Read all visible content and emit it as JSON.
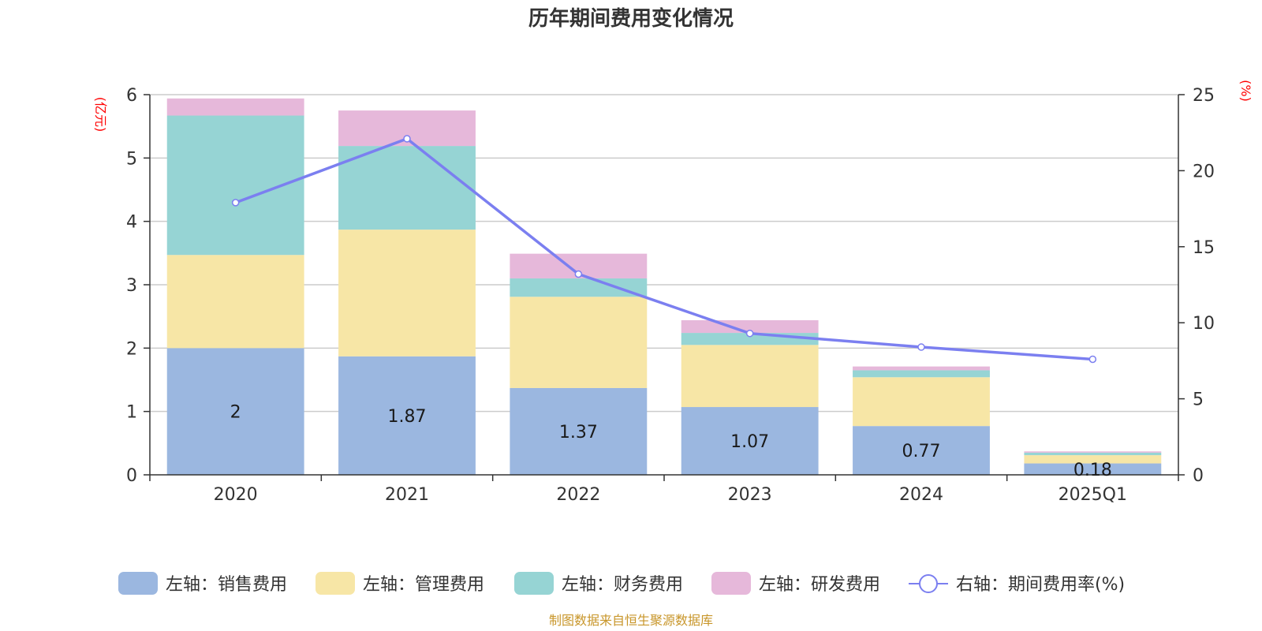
{
  "chart_data": {
    "type": "bar",
    "stacked": true,
    "title": "历年期间费用变化情况",
    "left_axis_unit": "(亿元)",
    "right_axis_unit": "(%)",
    "categories": [
      "2020",
      "2021",
      "2022",
      "2023",
      "2024",
      "2025Q1"
    ],
    "ylim_left": [
      0,
      6
    ],
    "yticks_left": [
      0,
      1,
      2,
      3,
      4,
      5,
      6
    ],
    "ylim_right": [
      0,
      25
    ],
    "yticks_right": [
      0,
      5,
      10,
      15,
      20,
      25
    ],
    "series": [
      {
        "name": "左轴：销售费用",
        "axis": "left",
        "type": "bar",
        "color": "#9bb7e0",
        "values": [
          2,
          1.87,
          1.37,
          1.07,
          0.77,
          0.18
        ],
        "labels": [
          "2",
          "1.87",
          "1.37",
          "1.07",
          "0.77",
          "0.18"
        ]
      },
      {
        "name": "左轴：管理费用",
        "axis": "left",
        "type": "bar",
        "color": "#f7e6a6",
        "values": [
          1.47,
          2.0,
          1.44,
          0.98,
          0.77,
          0.13
        ]
      },
      {
        "name": "左轴：财务费用",
        "axis": "left",
        "type": "bar",
        "color": "#96d4d4",
        "values": [
          2.2,
          1.32,
          0.29,
          0.19,
          0.11,
          0.04
        ]
      },
      {
        "name": "左轴：研发费用",
        "axis": "left",
        "type": "bar",
        "color": "#e6b8da",
        "values": [
          0.27,
          0.56,
          0.39,
          0.2,
          0.06,
          0.02
        ]
      },
      {
        "name": "右轴：期间费用率(%)",
        "axis": "right",
        "type": "line",
        "color": "#7b7ff0",
        "values": [
          17.9,
          22.1,
          13.2,
          9.3,
          8.4,
          7.6
        ]
      }
    ],
    "legend_position": "bottom",
    "grid": true
  },
  "source_note": "制图数据来自恒生聚源数据库"
}
